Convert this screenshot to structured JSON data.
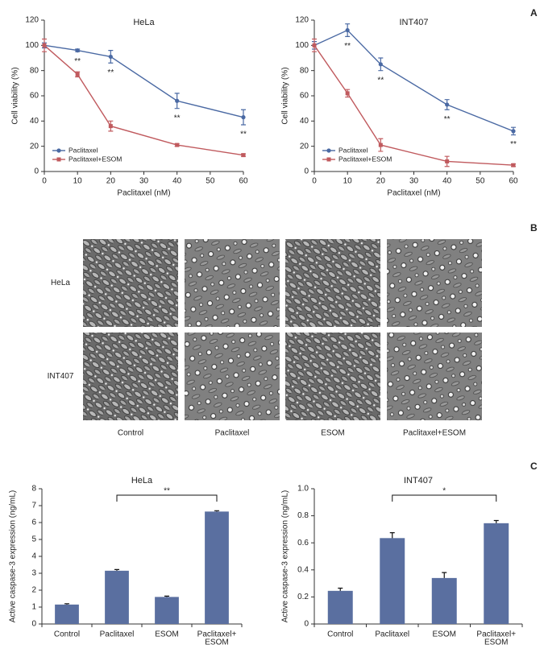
{
  "panels": {
    "a": "A",
    "b": "B",
    "c": "C"
  },
  "micrographs": {
    "rows": [
      "HeLa",
      "INT407"
    ],
    "columns": [
      "Control",
      "Paclitaxel",
      "ESOM",
      "Paclitaxel+ESOM"
    ]
  },
  "chart_data": [
    {
      "type": "line",
      "title": "HeLa",
      "xlabel": "Paclitaxel (nM)",
      "ylabel": "Cell viability (%)",
      "x": [
        0,
        10,
        20,
        40,
        60
      ],
      "xlim": [
        0,
        60
      ],
      "xticks": [
        0,
        10,
        20,
        30,
        40,
        50,
        60
      ],
      "ylim": [
        0,
        120
      ],
      "yticks": [
        0,
        20,
        40,
        60,
        80,
        100,
        120
      ],
      "legend": "lower left",
      "series": [
        {
          "name": "Paclitaxel",
          "color": "#4a69a3",
          "marker": "circle",
          "values": [
            100,
            96,
            91,
            56,
            43
          ],
          "errors": [
            2,
            1,
            5,
            6,
            6
          ]
        },
        {
          "name": "Paclitaxel+ESOM",
          "color": "#c05a5e",
          "marker": "square",
          "values": [
            100,
            77,
            36,
            21,
            13
          ],
          "errors": [
            5,
            2,
            4,
            1,
            1
          ]
        }
      ],
      "annotations": [
        {
          "x": 10,
          "text": "**"
        },
        {
          "x": 20,
          "text": "**"
        },
        {
          "x": 40,
          "text": "**"
        },
        {
          "x": 60,
          "text": "**"
        }
      ]
    },
    {
      "type": "line",
      "title": "INT407",
      "xlabel": "Paclitaxel (nM)",
      "ylabel": "Cell viability (%)",
      "x": [
        0,
        10,
        20,
        40,
        60
      ],
      "xlim": [
        0,
        60
      ],
      "xticks": [
        0,
        10,
        20,
        30,
        40,
        50,
        60
      ],
      "ylim": [
        0,
        120
      ],
      "yticks": [
        0,
        20,
        40,
        60,
        80,
        100,
        120
      ],
      "legend": "lower left",
      "series": [
        {
          "name": "Paclitaxel",
          "color": "#4a69a3",
          "marker": "circle",
          "values": [
            100,
            112,
            85,
            53,
            32
          ],
          "errors": [
            3,
            5,
            5,
            4,
            3
          ]
        },
        {
          "name": "Paclitaxel+ESOM",
          "color": "#c05a5e",
          "marker": "square",
          "values": [
            100,
            62,
            21,
            8,
            5
          ],
          "errors": [
            5,
            3,
            5,
            4,
            1
          ]
        }
      ],
      "annotations": [
        {
          "x": 10,
          "text": "**"
        },
        {
          "x": 20,
          "text": "**"
        },
        {
          "x": 40,
          "text": "**"
        },
        {
          "x": 60,
          "text": "**"
        }
      ]
    },
    {
      "type": "bar",
      "title": "HeLa",
      "ylabel": "Active caspase-3 expression (ng/mL)",
      "categories": [
        [
          "Control"
        ],
        [
          "Paclitaxel"
        ],
        [
          "ESOM"
        ],
        [
          "Paclitaxel+",
          "ESOM"
        ]
      ],
      "values": [
        1.15,
        3.15,
        1.6,
        6.65
      ],
      "errors": [
        0.05,
        0.07,
        0.05,
        0.05
      ],
      "color": "#5a6fa0",
      "ylim": [
        0,
        8
      ],
      "yticks": [
        0,
        1,
        2,
        3,
        4,
        5,
        6,
        7,
        8
      ],
      "significance": {
        "from": 1,
        "to": 3,
        "label": "**"
      }
    },
    {
      "type": "bar",
      "title": "INT407",
      "ylabel": "Active caspase-3 expression (ng/mL)",
      "categories": [
        [
          "Control"
        ],
        [
          "Paclitaxel"
        ],
        [
          "ESOM"
        ],
        [
          "Paclitaxel+",
          "ESOM"
        ]
      ],
      "values": [
        0.245,
        0.635,
        0.34,
        0.745
      ],
      "errors": [
        0.02,
        0.04,
        0.04,
        0.02
      ],
      "color": "#5a6fa0",
      "ylim": [
        0,
        1
      ],
      "yticks": [
        0,
        0.2,
        0.4,
        0.6,
        0.8,
        {
          "value": 1,
          "label": "1.0"
        }
      ],
      "significance": {
        "from": 1,
        "to": 3,
        "label": "*"
      }
    }
  ]
}
